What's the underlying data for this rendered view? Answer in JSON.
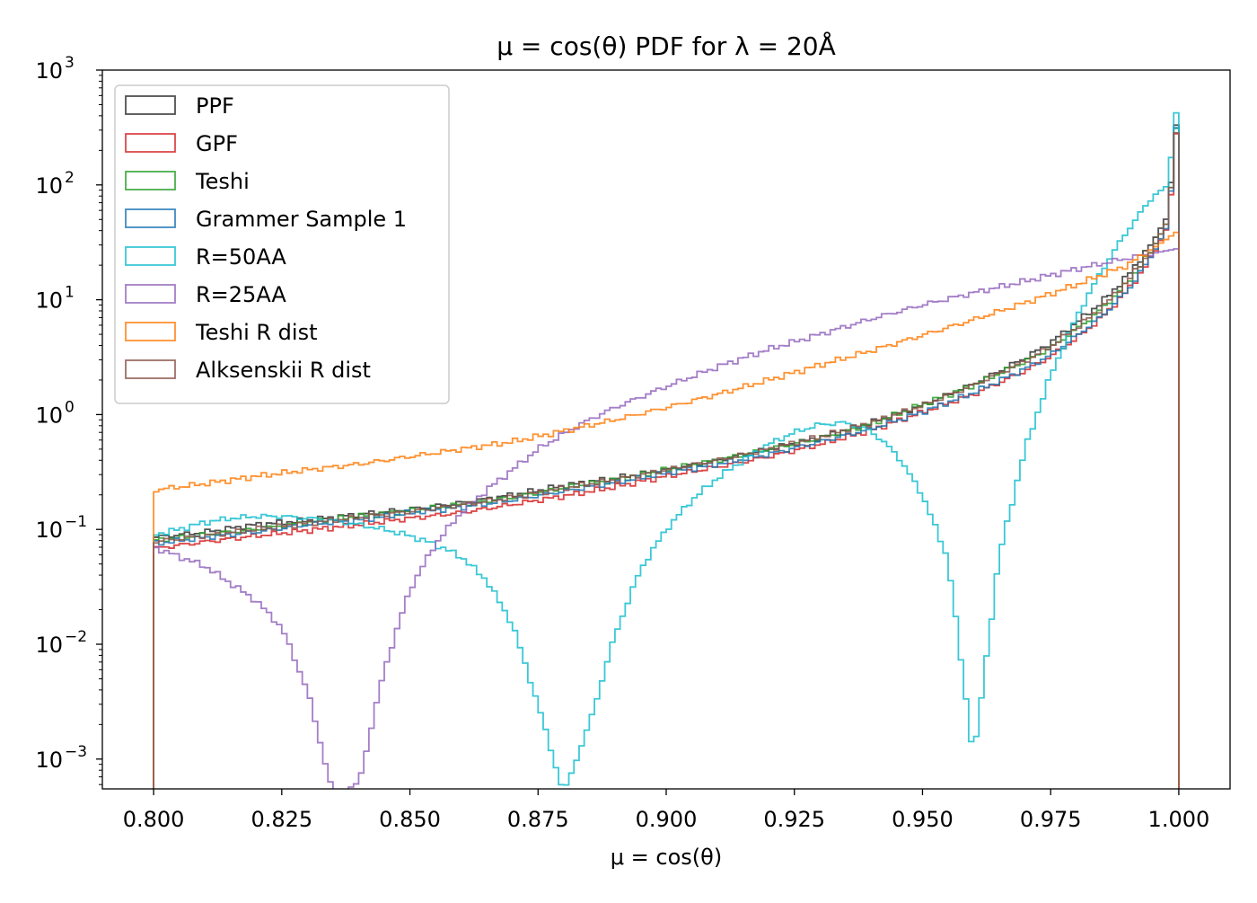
{
  "chart_data": {
    "type": "histogram",
    "title": "μ = cos(θ) PDF for λ = 20Å",
    "xlabel": "μ = cos(θ)",
    "ylabel": "",
    "xlim": [
      0.79,
      1.01
    ],
    "ylim": [
      0.00055,
      1000
    ],
    "yscale": "log",
    "grid": false,
    "legend_position": "top-left",
    "x_ticks": [
      {
        "value": 0.8,
        "label": "0.800"
      },
      {
        "value": 0.825,
        "label": "0.825"
      },
      {
        "value": 0.85,
        "label": "0.850"
      },
      {
        "value": 0.875,
        "label": "0.875"
      },
      {
        "value": 0.9,
        "label": "0.900"
      },
      {
        "value": 0.925,
        "label": "0.925"
      },
      {
        "value": 0.95,
        "label": "0.950"
      },
      {
        "value": 0.975,
        "label": "0.975"
      },
      {
        "value": 1.0,
        "label": "1.000"
      }
    ],
    "y_ticks": [
      {
        "value": 0.001,
        "base": "10",
        "exp": "−3"
      },
      {
        "value": 0.01,
        "base": "10",
        "exp": "−2"
      },
      {
        "value": 0.1,
        "base": "10",
        "exp": "−1"
      },
      {
        "value": 1,
        "base": "10",
        "exp": "0"
      },
      {
        "value": 10,
        "base": "10",
        "exp": "1"
      },
      {
        "value": 100,
        "base": "10",
        "exp": "2"
      },
      {
        "value": 1000,
        "base": "10",
        "exp": "3"
      }
    ],
    "bin_range": [
      0.8,
      1.0
    ],
    "bins": 200,
    "series": [
      {
        "name": "PPF",
        "color": "#333333",
        "points": [
          [
            0.8,
            0.085
          ],
          [
            0.81,
            0.095
          ],
          [
            0.82,
            0.11
          ],
          [
            0.83,
            0.12
          ],
          [
            0.84,
            0.135
          ],
          [
            0.85,
            0.15
          ],
          [
            0.86,
            0.17
          ],
          [
            0.87,
            0.2
          ],
          [
            0.88,
            0.24
          ],
          [
            0.89,
            0.28
          ],
          [
            0.9,
            0.33
          ],
          [
            0.91,
            0.4
          ],
          [
            0.92,
            0.5
          ],
          [
            0.93,
            0.63
          ],
          [
            0.94,
            0.85
          ],
          [
            0.95,
            1.2
          ],
          [
            0.96,
            1.85
          ],
          [
            0.97,
            3.1
          ],
          [
            0.975,
            4.2
          ],
          [
            0.98,
            6.3
          ],
          [
            0.985,
            9.5
          ],
          [
            0.99,
            16
          ],
          [
            0.995,
            32
          ],
          [
            0.998,
            55
          ],
          [
            0.999,
            200
          ],
          [
            1.0,
            550
          ]
        ]
      },
      {
        "name": "GPF",
        "color": "#d62728",
        "points": [
          [
            0.8,
            0.068
          ],
          [
            0.81,
            0.078
          ],
          [
            0.82,
            0.088
          ],
          [
            0.83,
            0.098
          ],
          [
            0.84,
            0.11
          ],
          [
            0.85,
            0.125
          ],
          [
            0.86,
            0.14
          ],
          [
            0.87,
            0.165
          ],
          [
            0.88,
            0.195
          ],
          [
            0.89,
            0.235
          ],
          [
            0.9,
            0.29
          ],
          [
            0.91,
            0.35
          ],
          [
            0.92,
            0.43
          ],
          [
            0.93,
            0.55
          ],
          [
            0.94,
            0.73
          ],
          [
            0.95,
            1.05
          ],
          [
            0.96,
            1.5
          ],
          [
            0.97,
            2.4
          ],
          [
            0.975,
            3.2
          ],
          [
            0.98,
            4.6
          ],
          [
            0.985,
            7.0
          ],
          [
            0.99,
            12
          ],
          [
            0.995,
            24
          ],
          [
            0.998,
            45
          ],
          [
            0.999,
            150
          ],
          [
            1.0,
            520
          ]
        ]
      },
      {
        "name": "Teshi",
        "color": "#2ca02c",
        "points": [
          [
            0.8,
            0.08
          ],
          [
            0.81,
            0.09
          ],
          [
            0.82,
            0.1
          ],
          [
            0.83,
            0.115
          ],
          [
            0.84,
            0.13
          ],
          [
            0.85,
            0.145
          ],
          [
            0.86,
            0.165
          ],
          [
            0.87,
            0.19
          ],
          [
            0.88,
            0.23
          ],
          [
            0.89,
            0.27
          ],
          [
            0.9,
            0.33
          ],
          [
            0.91,
            0.4
          ],
          [
            0.92,
            0.5
          ],
          [
            0.93,
            0.62
          ],
          [
            0.94,
            0.83
          ],
          [
            0.95,
            1.22
          ],
          [
            0.96,
            1.8
          ],
          [
            0.97,
            2.9
          ],
          [
            0.975,
            3.8
          ],
          [
            0.98,
            5.5
          ],
          [
            0.985,
            8.3
          ],
          [
            0.99,
            14
          ],
          [
            0.995,
            28
          ],
          [
            0.998,
            50
          ],
          [
            0.999,
            180
          ],
          [
            1.0,
            540
          ]
        ]
      },
      {
        "name": "Grammer Sample 1",
        "color": "#1f77b4",
        "points": [
          [
            0.8,
            0.075
          ],
          [
            0.81,
            0.085
          ],
          [
            0.82,
            0.095
          ],
          [
            0.83,
            0.11
          ],
          [
            0.84,
            0.12
          ],
          [
            0.85,
            0.14
          ],
          [
            0.86,
            0.155
          ],
          [
            0.87,
            0.18
          ],
          [
            0.88,
            0.215
          ],
          [
            0.89,
            0.255
          ],
          [
            0.9,
            0.31
          ],
          [
            0.91,
            0.37
          ],
          [
            0.92,
            0.45
          ],
          [
            0.93,
            0.58
          ],
          [
            0.94,
            0.75
          ],
          [
            0.95,
            1.05
          ],
          [
            0.96,
            1.55
          ],
          [
            0.97,
            2.5
          ],
          [
            0.975,
            3.3
          ],
          [
            0.98,
            4.8
          ],
          [
            0.985,
            7.2
          ],
          [
            0.99,
            12
          ],
          [
            0.995,
            25
          ],
          [
            0.998,
            46
          ],
          [
            0.999,
            170
          ],
          [
            1.0,
            580
          ]
        ]
      },
      {
        "name": "R=50AA",
        "color": "#17becf",
        "points": [
          [
            0.8,
            0.09
          ],
          [
            0.805,
            0.1
          ],
          [
            0.81,
            0.115
          ],
          [
            0.815,
            0.125
          ],
          [
            0.82,
            0.13
          ],
          [
            0.825,
            0.13
          ],
          [
            0.83,
            0.125
          ],
          [
            0.835,
            0.12
          ],
          [
            0.84,
            0.11
          ],
          [
            0.845,
            0.1
          ],
          [
            0.85,
            0.088
          ],
          [
            0.855,
            0.074
          ],
          [
            0.86,
            0.058
          ],
          [
            0.865,
            0.036
          ],
          [
            0.87,
            0.015
          ],
          [
            0.875,
            0.003
          ],
          [
            0.88,
            0.0005
          ],
          [
            0.885,
            0.002
          ],
          [
            0.89,
            0.012
          ],
          [
            0.895,
            0.045
          ],
          [
            0.9,
            0.1
          ],
          [
            0.905,
            0.18
          ],
          [
            0.91,
            0.28
          ],
          [
            0.915,
            0.4
          ],
          [
            0.92,
            0.55
          ],
          [
            0.925,
            0.7
          ],
          [
            0.93,
            0.82
          ],
          [
            0.935,
            0.85
          ],
          [
            0.94,
            0.72
          ],
          [
            0.945,
            0.45
          ],
          [
            0.95,
            0.2
          ],
          [
            0.955,
            0.055
          ],
          [
            0.96,
            0.001
          ],
          [
            0.965,
            0.06
          ],
          [
            0.97,
            0.5
          ],
          [
            0.975,
            2.2
          ],
          [
            0.98,
            7.0
          ],
          [
            0.985,
            18
          ],
          [
            0.99,
            40
          ],
          [
            0.995,
            80
          ],
          [
            0.998,
            100
          ],
          [
            0.999,
            300
          ],
          [
            1.0,
            600
          ]
        ]
      },
      {
        "name": "R=25AA",
        "color": "#9467bd",
        "points": [
          [
            0.8,
            0.07
          ],
          [
            0.805,
            0.058
          ],
          [
            0.81,
            0.048
          ],
          [
            0.815,
            0.034
          ],
          [
            0.82,
            0.024
          ],
          [
            0.825,
            0.014
          ],
          [
            0.83,
            0.004
          ],
          [
            0.835,
            0.0005
          ],
          [
            0.84,
            0.0006
          ],
          [
            0.845,
            0.006
          ],
          [
            0.85,
            0.03
          ],
          [
            0.855,
            0.075
          ],
          [
            0.86,
            0.14
          ],
          [
            0.865,
            0.22
          ],
          [
            0.87,
            0.33
          ],
          [
            0.875,
            0.5
          ],
          [
            0.88,
            0.68
          ],
          [
            0.885,
            0.9
          ],
          [
            0.89,
            1.15
          ],
          [
            0.895,
            1.42
          ],
          [
            0.9,
            1.75
          ],
          [
            0.91,
            2.6
          ],
          [
            0.92,
            3.7
          ],
          [
            0.93,
            5.0
          ],
          [
            0.94,
            6.8
          ],
          [
            0.95,
            9.0
          ],
          [
            0.96,
            11.5
          ],
          [
            0.97,
            14.5
          ],
          [
            0.98,
            18.5
          ],
          [
            0.99,
            23
          ],
          [
            1.0,
            28
          ]
        ]
      },
      {
        "name": "Teshi R dist",
        "color": "#ff7f0e",
        "points": [
          [
            0.8,
            0.22
          ],
          [
            0.81,
            0.25
          ],
          [
            0.82,
            0.29
          ],
          [
            0.83,
            0.33
          ],
          [
            0.84,
            0.37
          ],
          [
            0.85,
            0.43
          ],
          [
            0.86,
            0.5
          ],
          [
            0.87,
            0.58
          ],
          [
            0.88,
            0.72
          ],
          [
            0.89,
            0.9
          ],
          [
            0.9,
            1.15
          ],
          [
            0.91,
            1.5
          ],
          [
            0.92,
            2.0
          ],
          [
            0.93,
            2.7
          ],
          [
            0.94,
            3.6
          ],
          [
            0.95,
            4.9
          ],
          [
            0.96,
            6.7
          ],
          [
            0.97,
            9.4
          ],
          [
            0.98,
            13.5
          ],
          [
            0.99,
            20
          ],
          [
            0.995,
            28
          ],
          [
            1.0,
            40
          ]
        ]
      },
      {
        "name": "Alksenskii R dist",
        "color": "#8c564b",
        "points": [
          [
            0.8,
            0.078
          ],
          [
            0.81,
            0.088
          ],
          [
            0.82,
            0.1
          ],
          [
            0.83,
            0.113
          ],
          [
            0.84,
            0.127
          ],
          [
            0.85,
            0.143
          ],
          [
            0.86,
            0.163
          ],
          [
            0.87,
            0.19
          ],
          [
            0.88,
            0.228
          ],
          [
            0.89,
            0.27
          ],
          [
            0.9,
            0.33
          ],
          [
            0.91,
            0.4
          ],
          [
            0.92,
            0.5
          ],
          [
            0.93,
            0.64
          ],
          [
            0.94,
            0.85
          ],
          [
            0.95,
            1.2
          ],
          [
            0.96,
            1.8
          ],
          [
            0.97,
            2.9
          ],
          [
            0.975,
            3.9
          ],
          [
            0.98,
            5.7
          ],
          [
            0.985,
            8.5
          ],
          [
            0.99,
            14.5
          ],
          [
            0.995,
            28
          ],
          [
            0.998,
            50
          ],
          [
            0.999,
            180
          ],
          [
            1.0,
            450
          ]
        ]
      }
    ]
  }
}
